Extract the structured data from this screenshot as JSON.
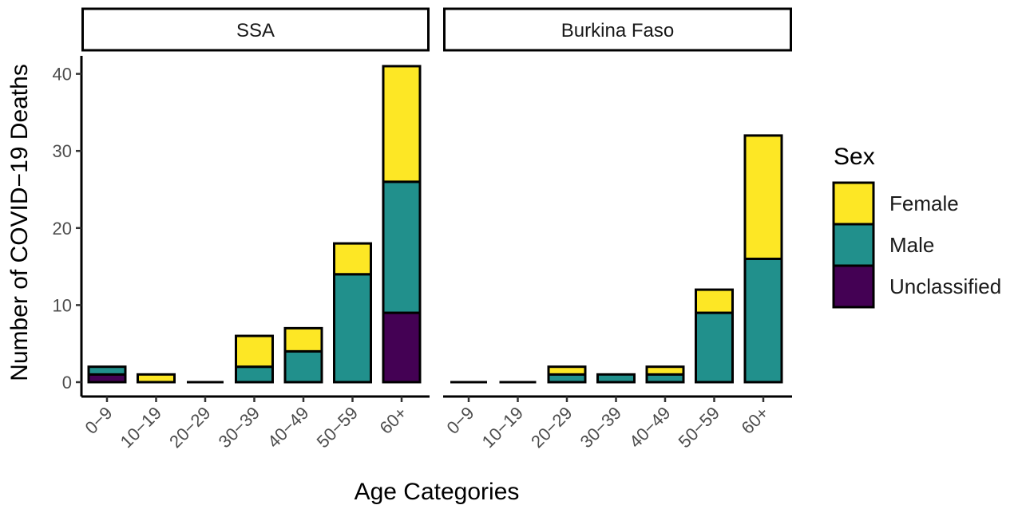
{
  "chart_data": {
    "type": "bar",
    "stacked": true,
    "xlabel": "Age Categories",
    "ylabel": "Number of COVID−19 Deaths",
    "ylim": [
      0,
      43
    ],
    "yticks": [
      0,
      10,
      20,
      30,
      40
    ],
    "grid": false,
    "legend": {
      "title": "Sex",
      "position": "right",
      "entries": [
        "Female",
        "Male",
        "Unclassified"
      ]
    },
    "colors": {
      "Female": "#fde725",
      "Male": "#21908c",
      "Unclassified": "#440154"
    },
    "stack_order": [
      "Unclassified",
      "Male",
      "Female"
    ],
    "categories": [
      "0−9",
      "10−19",
      "20−29",
      "30−39",
      "40−49",
      "50−59",
      "60+"
    ],
    "panels": [
      {
        "label": "SSA",
        "series": [
          {
            "name": "Female",
            "values": [
              0,
              1,
              0,
              4,
              3,
              4,
              15
            ]
          },
          {
            "name": "Male",
            "values": [
              1,
              0,
              0,
              2,
              4,
              14,
              17
            ]
          },
          {
            "name": "Unclassified",
            "values": [
              1,
              0,
              0,
              0,
              0,
              0,
              9
            ]
          }
        ]
      },
      {
        "label": "Burkina Faso",
        "series": [
          {
            "name": "Female",
            "values": [
              0,
              0,
              1,
              0,
              1,
              3,
              16
            ]
          },
          {
            "name": "Male",
            "values": [
              0,
              0,
              1,
              1,
              1,
              9,
              16
            ]
          },
          {
            "name": "Unclassified",
            "values": [
              0,
              0,
              0,
              0,
              0,
              0,
              0
            ]
          }
        ]
      }
    ]
  }
}
